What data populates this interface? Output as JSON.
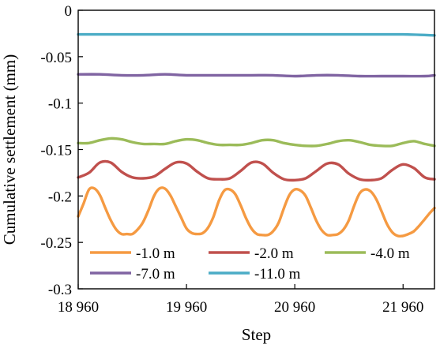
{
  "chart_data": {
    "type": "line",
    "title": "",
    "xlabel": "Step",
    "ylabel": "Cumulative settlement (mm)",
    "xlim": [
      18960,
      22250
    ],
    "ylim": [
      -0.3,
      0
    ],
    "xticks": [
      18960,
      19960,
      20960,
      21960
    ],
    "xtick_labels": [
      "18 960",
      "19 960",
      "20 960",
      "21 960"
    ],
    "yticks": [
      0,
      -0.05,
      -0.1,
      -0.15,
      -0.2,
      -0.25,
      -0.3
    ],
    "ytick_labels": [
      "0",
      "-0.05",
      "-0.1",
      "-0.15",
      "-0.2",
      "-0.25",
      "-0.3"
    ],
    "grid": false,
    "legend_position": "bottom",
    "series": [
      {
        "name": "-1.0 m",
        "color": "#f59a42",
        "x": [
          18960,
          19010,
          19060,
          19110,
          19160,
          19210,
          19260,
          19310,
          19360,
          19410,
          19460,
          19510,
          19560,
          19610,
          19660,
          19710,
          19760,
          19810,
          19860,
          19910,
          19960,
          20010,
          20060,
          20110,
          20160,
          20210,
          20260,
          20310,
          20360,
          20410,
          20460,
          20510,
          20560,
          20610,
          20660,
          20710,
          20760,
          20810,
          20860,
          20910,
          20960,
          21010,
          21060,
          21110,
          21160,
          21210,
          21260,
          21310,
          21360,
          21410,
          21460,
          21510,
          21560,
          21610,
          21660,
          21710,
          21760,
          21810,
          21860,
          21910,
          21960,
          22010,
          22060,
          22110,
          22160,
          22210,
          22250
        ],
        "y": [
          -0.222,
          -0.208,
          -0.193,
          -0.192,
          -0.199,
          -0.213,
          -0.226,
          -0.236,
          -0.241,
          -0.241,
          -0.241,
          -0.236,
          -0.228,
          -0.215,
          -0.2,
          -0.192,
          -0.192,
          -0.199,
          -0.211,
          -0.223,
          -0.235,
          -0.24,
          -0.241,
          -0.24,
          -0.234,
          -0.222,
          -0.205,
          -0.194,
          -0.193,
          -0.198,
          -0.21,
          -0.224,
          -0.235,
          -0.241,
          -0.242,
          -0.242,
          -0.238,
          -0.229,
          -0.213,
          -0.199,
          -0.193,
          -0.194,
          -0.2,
          -0.213,
          -0.227,
          -0.237,
          -0.242,
          -0.242,
          -0.241,
          -0.236,
          -0.226,
          -0.21,
          -0.197,
          -0.193,
          -0.195,
          -0.203,
          -0.216,
          -0.23,
          -0.239,
          -0.243,
          -0.243,
          -0.241,
          -0.238,
          -0.232,
          -0.225,
          -0.218,
          -0.213
        ]
      },
      {
        "name": "-2.0 m",
        "color": "#c0504d",
        "x": [
          18960,
          19060,
          19160,
          19260,
          19360,
          19460,
          19560,
          19660,
          19760,
          19860,
          19960,
          20060,
          20160,
          20260,
          20360,
          20460,
          20560,
          20660,
          20760,
          20860,
          20960,
          21060,
          21160,
          21260,
          21360,
          21460,
          21560,
          21660,
          21760,
          21860,
          21960,
          22060,
          22160,
          22250
        ],
        "y": [
          -0.18,
          -0.175,
          -0.164,
          -0.164,
          -0.174,
          -0.18,
          -0.181,
          -0.179,
          -0.171,
          -0.164,
          -0.165,
          -0.174,
          -0.181,
          -0.182,
          -0.181,
          -0.173,
          -0.164,
          -0.165,
          -0.175,
          -0.182,
          -0.183,
          -0.181,
          -0.173,
          -0.165,
          -0.166,
          -0.176,
          -0.182,
          -0.183,
          -0.181,
          -0.172,
          -0.166,
          -0.17,
          -0.18,
          -0.182
        ]
      },
      {
        "name": "-4.0 m",
        "color": "#9bbb59",
        "x": [
          18960,
          19060,
          19160,
          19260,
          19360,
          19460,
          19560,
          19660,
          19760,
          19860,
          19960,
          20060,
          20160,
          20260,
          20360,
          20460,
          20560,
          20660,
          20760,
          20860,
          20960,
          21060,
          21160,
          21260,
          21360,
          21460,
          21560,
          21660,
          21760,
          21860,
          21960,
          22060,
          22160,
          22250
        ],
        "y": [
          -0.143,
          -0.143,
          -0.14,
          -0.138,
          -0.139,
          -0.142,
          -0.144,
          -0.144,
          -0.144,
          -0.141,
          -0.139,
          -0.14,
          -0.143,
          -0.145,
          -0.145,
          -0.145,
          -0.143,
          -0.14,
          -0.14,
          -0.143,
          -0.145,
          -0.146,
          -0.146,
          -0.144,
          -0.141,
          -0.14,
          -0.142,
          -0.145,
          -0.146,
          -0.146,
          -0.143,
          -0.141,
          -0.144,
          -0.146
        ]
      },
      {
        "name": "-7.0 m",
        "color": "#8064a2",
        "x": [
          18960,
          19160,
          19360,
          19560,
          19760,
          19960,
          20160,
          20360,
          20560,
          20760,
          20960,
          21160,
          21360,
          21560,
          21760,
          21960,
          22160,
          22250
        ],
        "y": [
          -0.069,
          -0.069,
          -0.07,
          -0.07,
          -0.069,
          -0.07,
          -0.07,
          -0.07,
          -0.07,
          -0.07,
          -0.071,
          -0.07,
          -0.07,
          -0.071,
          -0.071,
          -0.071,
          -0.071,
          -0.07
        ]
      },
      {
        "name": "-11.0 m",
        "color": "#4bacc6",
        "x": [
          18960,
          19260,
          19560,
          19860,
          20160,
          20460,
          20760,
          21060,
          21360,
          21660,
          21960,
          22250
        ],
        "y": [
          -0.026,
          -0.026,
          -0.026,
          -0.026,
          -0.026,
          -0.026,
          -0.026,
          -0.026,
          -0.026,
          -0.026,
          -0.026,
          -0.027
        ]
      }
    ]
  }
}
